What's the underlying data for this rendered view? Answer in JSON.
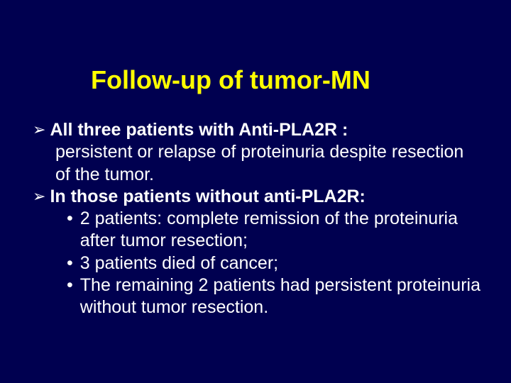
{
  "colors": {
    "background": "#000050",
    "title": "#ffff00",
    "body_text": "#ffffff"
  },
  "typography": {
    "title_fontsize": 36,
    "title_weight": "bold",
    "body_fontsize": 25,
    "font_family": "Arial"
  },
  "title": "Follow-up of tumor-MN",
  "bullets": [
    {
      "marker": "➢",
      "bold_text": "All three patients with Anti-PLA2R :",
      "body_text": "persistent or relapse of proteinuria despite resection of the tumor."
    },
    {
      "marker": "➢",
      "bold_text": "In those patients without anti-PLA2R:",
      "sub": [
        {
          "marker": "•",
          "text": "2 patients: complete remission of the proteinuria after tumor resection;"
        },
        {
          "marker": "•",
          "text": "3 patients died of cancer;"
        },
        {
          "marker": "•",
          "text": "The remaining 2 patients had persistent proteinuria without tumor resection."
        }
      ]
    }
  ]
}
